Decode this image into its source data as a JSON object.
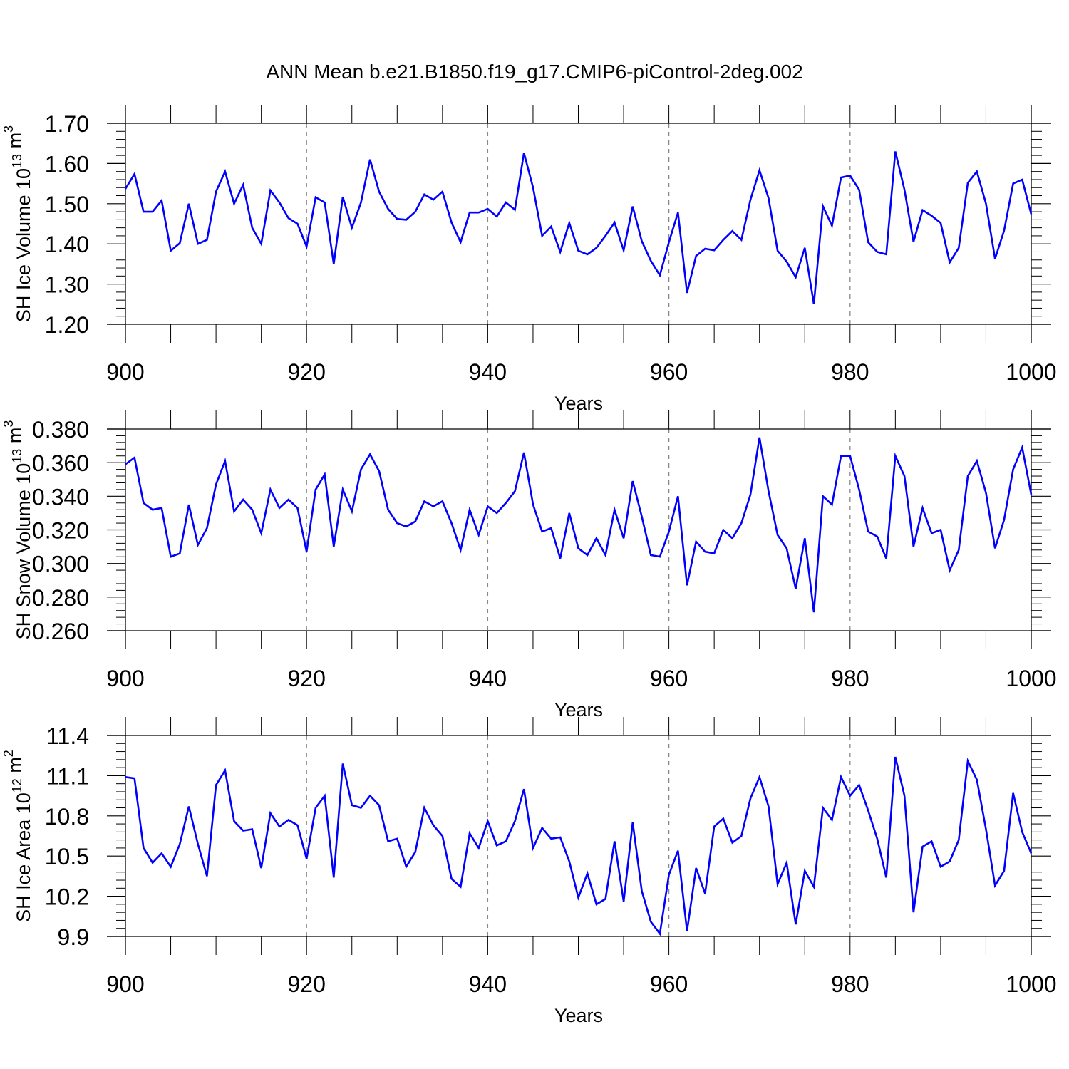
{
  "title": "ANN Mean b.e21.B1850.f19_g17.CMIP6-piControl-2deg.002",
  "colors": {
    "line": "#0000ff",
    "axis": "#000000",
    "grid": "#888888"
  },
  "chart_data": [
    {
      "type": "line",
      "xlabel": "Years",
      "ylabel": "SH Ice Volume 10",
      "ylabel_exp": "13",
      "ylabel_unit": " m",
      "ylabel_unit_exp": "3",
      "xlim": [
        900,
        1000
      ],
      "ylim": [
        1.2,
        1.7
      ],
      "xticks": [
        "900",
        "920",
        "940",
        "960",
        "980",
        "1000"
      ],
      "yticks": [
        "1.20",
        "1.30",
        "1.40",
        "1.50",
        "1.60",
        "1.70"
      ],
      "x_start": 900,
      "values": [
        1.537,
        1.574,
        1.48,
        1.48,
        1.508,
        1.383,
        1.402,
        1.5,
        1.4,
        1.41,
        1.53,
        1.58,
        1.5,
        1.547,
        1.44,
        1.4,
        1.533,
        1.503,
        1.464,
        1.45,
        1.393,
        1.516,
        1.503,
        1.35,
        1.517,
        1.44,
        1.503,
        1.61,
        1.53,
        1.487,
        1.462,
        1.46,
        1.48,
        1.523,
        1.51,
        1.53,
        1.453,
        1.404,
        1.478,
        1.478,
        1.487,
        1.468,
        1.503,
        1.485,
        1.626,
        1.54,
        1.42,
        1.443,
        1.38,
        1.452,
        1.383,
        1.374,
        1.39,
        1.42,
        1.453,
        1.384,
        1.493,
        1.407,
        1.358,
        1.322,
        1.404,
        1.478,
        1.278,
        1.37,
        1.388,
        1.384,
        1.41,
        1.432,
        1.41,
        1.51,
        1.583,
        1.514,
        1.383,
        1.356,
        1.317,
        1.39,
        1.25,
        1.494,
        1.445,
        1.565,
        1.57,
        1.535,
        1.404,
        1.38,
        1.374,
        1.63,
        1.535,
        1.405,
        1.484,
        1.47,
        1.452,
        1.354,
        1.39,
        1.552,
        1.58,
        1.5,
        1.363,
        1.433,
        1.55,
        1.56,
        1.474
      ]
    },
    {
      "type": "line",
      "xlabel": "Years",
      "ylabel": "SH Snow Volume 10",
      "ylabel_exp": "13",
      "ylabel_unit": " m",
      "ylabel_unit_exp": "3",
      "xlim": [
        900,
        1000
      ],
      "ylim": [
        0.26,
        0.38
      ],
      "xticks": [
        "900",
        "920",
        "940",
        "960",
        "980",
        "1000"
      ],
      "yticks": [
        "0.260",
        "0.280",
        "0.300",
        "0.320",
        "0.340",
        "0.360",
        "0.380"
      ],
      "x_start": 900,
      "values": [
        0.359,
        0.363,
        0.336,
        0.332,
        0.333,
        0.304,
        0.306,
        0.335,
        0.311,
        0.321,
        0.347,
        0.361,
        0.331,
        0.338,
        0.332,
        0.318,
        0.344,
        0.333,
        0.338,
        0.333,
        0.307,
        0.344,
        0.353,
        0.31,
        0.344,
        0.331,
        0.356,
        0.365,
        0.355,
        0.332,
        0.324,
        0.322,
        0.325,
        0.337,
        0.334,
        0.337,
        0.324,
        0.308,
        0.332,
        0.317,
        0.334,
        0.33,
        0.336,
        0.343,
        0.366,
        0.335,
        0.319,
        0.321,
        0.303,
        0.33,
        0.309,
        0.305,
        0.315,
        0.305,
        0.332,
        0.315,
        0.349,
        0.328,
        0.305,
        0.304,
        0.319,
        0.34,
        0.287,
        0.313,
        0.307,
        0.306,
        0.32,
        0.315,
        0.324,
        0.341,
        0.375,
        0.343,
        0.317,
        0.309,
        0.285,
        0.315,
        0.271,
        0.34,
        0.335,
        0.364,
        0.364,
        0.344,
        0.319,
        0.316,
        0.303,
        0.364,
        0.352,
        0.31,
        0.333,
        0.318,
        0.32,
        0.296,
        0.308,
        0.352,
        0.361,
        0.342,
        0.309,
        0.326,
        0.356,
        0.369,
        0.341
      ]
    },
    {
      "type": "line",
      "xlabel": "Years",
      "ylabel": "SH Ice Area 10",
      "ylabel_exp": "12",
      "ylabel_unit": " m",
      "ylabel_unit_exp": "2",
      "xlim": [
        900,
        1000
      ],
      "ylim": [
        9.9,
        11.4
      ],
      "xticks": [
        "900",
        "920",
        "940",
        "960",
        "980",
        "1000"
      ],
      "yticks": [
        "9.9",
        "10.2",
        "10.5",
        "10.8",
        "11.1",
        "11.4"
      ],
      "x_start": 900,
      "values": [
        11.09,
        11.08,
        10.56,
        10.45,
        10.52,
        10.42,
        10.59,
        10.87,
        10.59,
        10.35,
        11.03,
        11.14,
        10.76,
        10.69,
        10.7,
        10.41,
        10.82,
        10.72,
        10.77,
        10.73,
        10.48,
        10.86,
        10.95,
        10.34,
        11.19,
        10.88,
        10.86,
        10.95,
        10.88,
        10.61,
        10.63,
        10.42,
        10.53,
        10.86,
        10.73,
        10.65,
        10.33,
        10.27,
        10.67,
        10.56,
        10.76,
        10.58,
        10.61,
        10.76,
        11.0,
        10.56,
        10.71,
        10.63,
        10.64,
        10.46,
        10.19,
        10.37,
        10.14,
        10.18,
        10.61,
        10.16,
        10.75,
        10.24,
        10.01,
        9.92,
        10.36,
        10.54,
        9.94,
        10.41,
        10.22,
        10.72,
        10.78,
        10.6,
        10.65,
        10.93,
        11.09,
        10.87,
        10.29,
        10.45,
        9.99,
        10.39,
        10.27,
        10.86,
        10.77,
        11.09,
        10.95,
        11.03,
        10.84,
        10.63,
        10.34,
        11.24,
        10.95,
        10.08,
        10.57,
        10.61,
        10.42,
        10.46,
        10.62,
        11.21,
        11.07,
        10.7,
        10.28,
        10.39,
        10.97,
        10.68,
        10.52
      ]
    }
  ]
}
